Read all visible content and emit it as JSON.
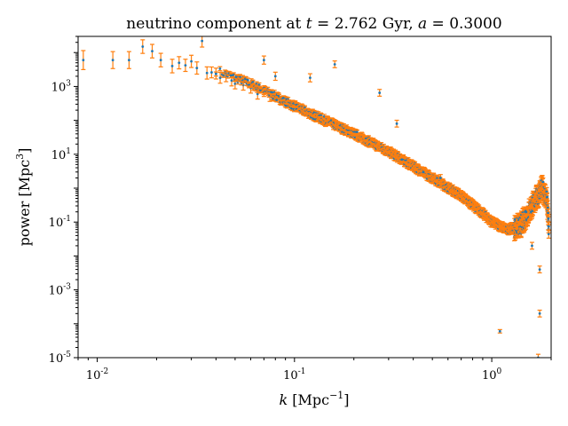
{
  "chart_data": {
    "type": "scatter",
    "title": {
      "prefix": "neutrino component at ",
      "t_var": "t",
      "t_eq": " = 2.762 Gyr, ",
      "a_var": "a",
      "a_eq": " = 0.3000"
    },
    "xlabel": {
      "var": "k",
      "unit": " [Mpc",
      "exp": "−1",
      "close": "]"
    },
    "ylabel": {
      "text": "power [Mpc",
      "exp": "3",
      "close": "]"
    },
    "xscale": "log",
    "yscale": "log",
    "xlim": [
      0.008,
      2.0
    ],
    "ylim": [
      1e-05,
      30000
    ],
    "grid": false,
    "x_ticks": [
      {
        "value": 0.01,
        "base": "10",
        "exp": "-2"
      },
      {
        "value": 0.1,
        "base": "10",
        "exp": "-1"
      },
      {
        "value": 1,
        "base": "10",
        "exp": "0"
      }
    ],
    "y_ticks": [
      {
        "value": 1e-05,
        "base": "10",
        "exp": "-5"
      },
      {
        "value": 0.001,
        "base": "10",
        "exp": "-3"
      },
      {
        "value": 0.1,
        "base": "10",
        "exp": "-1"
      },
      {
        "value": 10,
        "base": "10",
        "exp": "1"
      },
      {
        "value": 1000,
        "base": "10",
        "exp": "3"
      }
    ],
    "colors": {
      "points": "#1f77b4",
      "errorbars": "#ff7f0e",
      "axes": "#000000"
    },
    "series": [
      {
        "low_k_points": [
          [
            0.0085,
            6000,
            0.28
          ],
          [
            0.012,
            6000,
            0.25
          ],
          [
            0.0145,
            6000,
            0.25
          ],
          [
            0.017,
            15000,
            0.2
          ],
          [
            0.019,
            11000,
            0.2
          ],
          [
            0.021,
            6000,
            0.2
          ],
          [
            0.024,
            4000,
            0.2
          ],
          [
            0.026,
            5000,
            0.18
          ],
          [
            0.028,
            4200,
            0.18
          ],
          [
            0.03,
            5500,
            0.18
          ],
          [
            0.032,
            3500,
            0.18
          ],
          [
            0.034,
            22000,
            0.18
          ],
          [
            0.036,
            2500,
            0.18
          ],
          [
            0.038,
            2600,
            0.16
          ],
          [
            0.04,
            2400,
            0.16
          ],
          [
            0.042,
            1800,
            0.16
          ],
          [
            0.045,
            2000,
            0.16
          ],
          [
            0.048,
            1500,
            0.16
          ],
          [
            0.05,
            1200,
            0.15
          ],
          [
            0.055,
            1100,
            0.15
          ],
          [
            0.06,
            900,
            0.15
          ],
          [
            0.065,
            600,
            0.15
          ],
          [
            0.07,
            700,
            0.14
          ],
          [
            0.075,
            500,
            0.14
          ]
        ],
        "outliers": [
          [
            0.07,
            6000,
            0.12
          ],
          [
            0.08,
            2000,
            0.12
          ],
          [
            0.12,
            1800,
            0.12
          ],
          [
            0.16,
            4500,
            0.1
          ],
          [
            0.27,
            650,
            0.1
          ],
          [
            0.33,
            80,
            0.1
          ],
          [
            0.35,
            7,
            0.1
          ],
          [
            0.45,
            3,
            0.1
          ],
          [
            0.55,
            2,
            0.1
          ],
          [
            1.1,
            6e-05,
            0.05
          ],
          [
            1.72,
            1e-05,
            0.1
          ],
          [
            1.75,
            0.0002,
            0.1
          ],
          [
            1.6,
            0.02,
            0.1
          ],
          [
            1.75,
            0.004,
            0.1
          ]
        ],
        "band_anchors": [
          [
            0.04,
            3000
          ],
          [
            0.06,
            1200
          ],
          [
            0.1,
            260
          ],
          [
            0.2,
            40
          ],
          [
            0.3,
            12
          ],
          [
            0.5,
            2
          ],
          [
            0.7,
            0.6
          ],
          [
            0.9,
            0.18
          ],
          [
            1.0,
            0.1
          ],
          [
            1.2,
            0.06
          ],
          [
            1.4,
            0.08
          ],
          [
            1.6,
            0.3
          ],
          [
            1.8,
            1.0
          ],
          [
            1.9,
            0.5
          ],
          [
            1.95,
            0.05
          ]
        ]
      }
    ]
  }
}
